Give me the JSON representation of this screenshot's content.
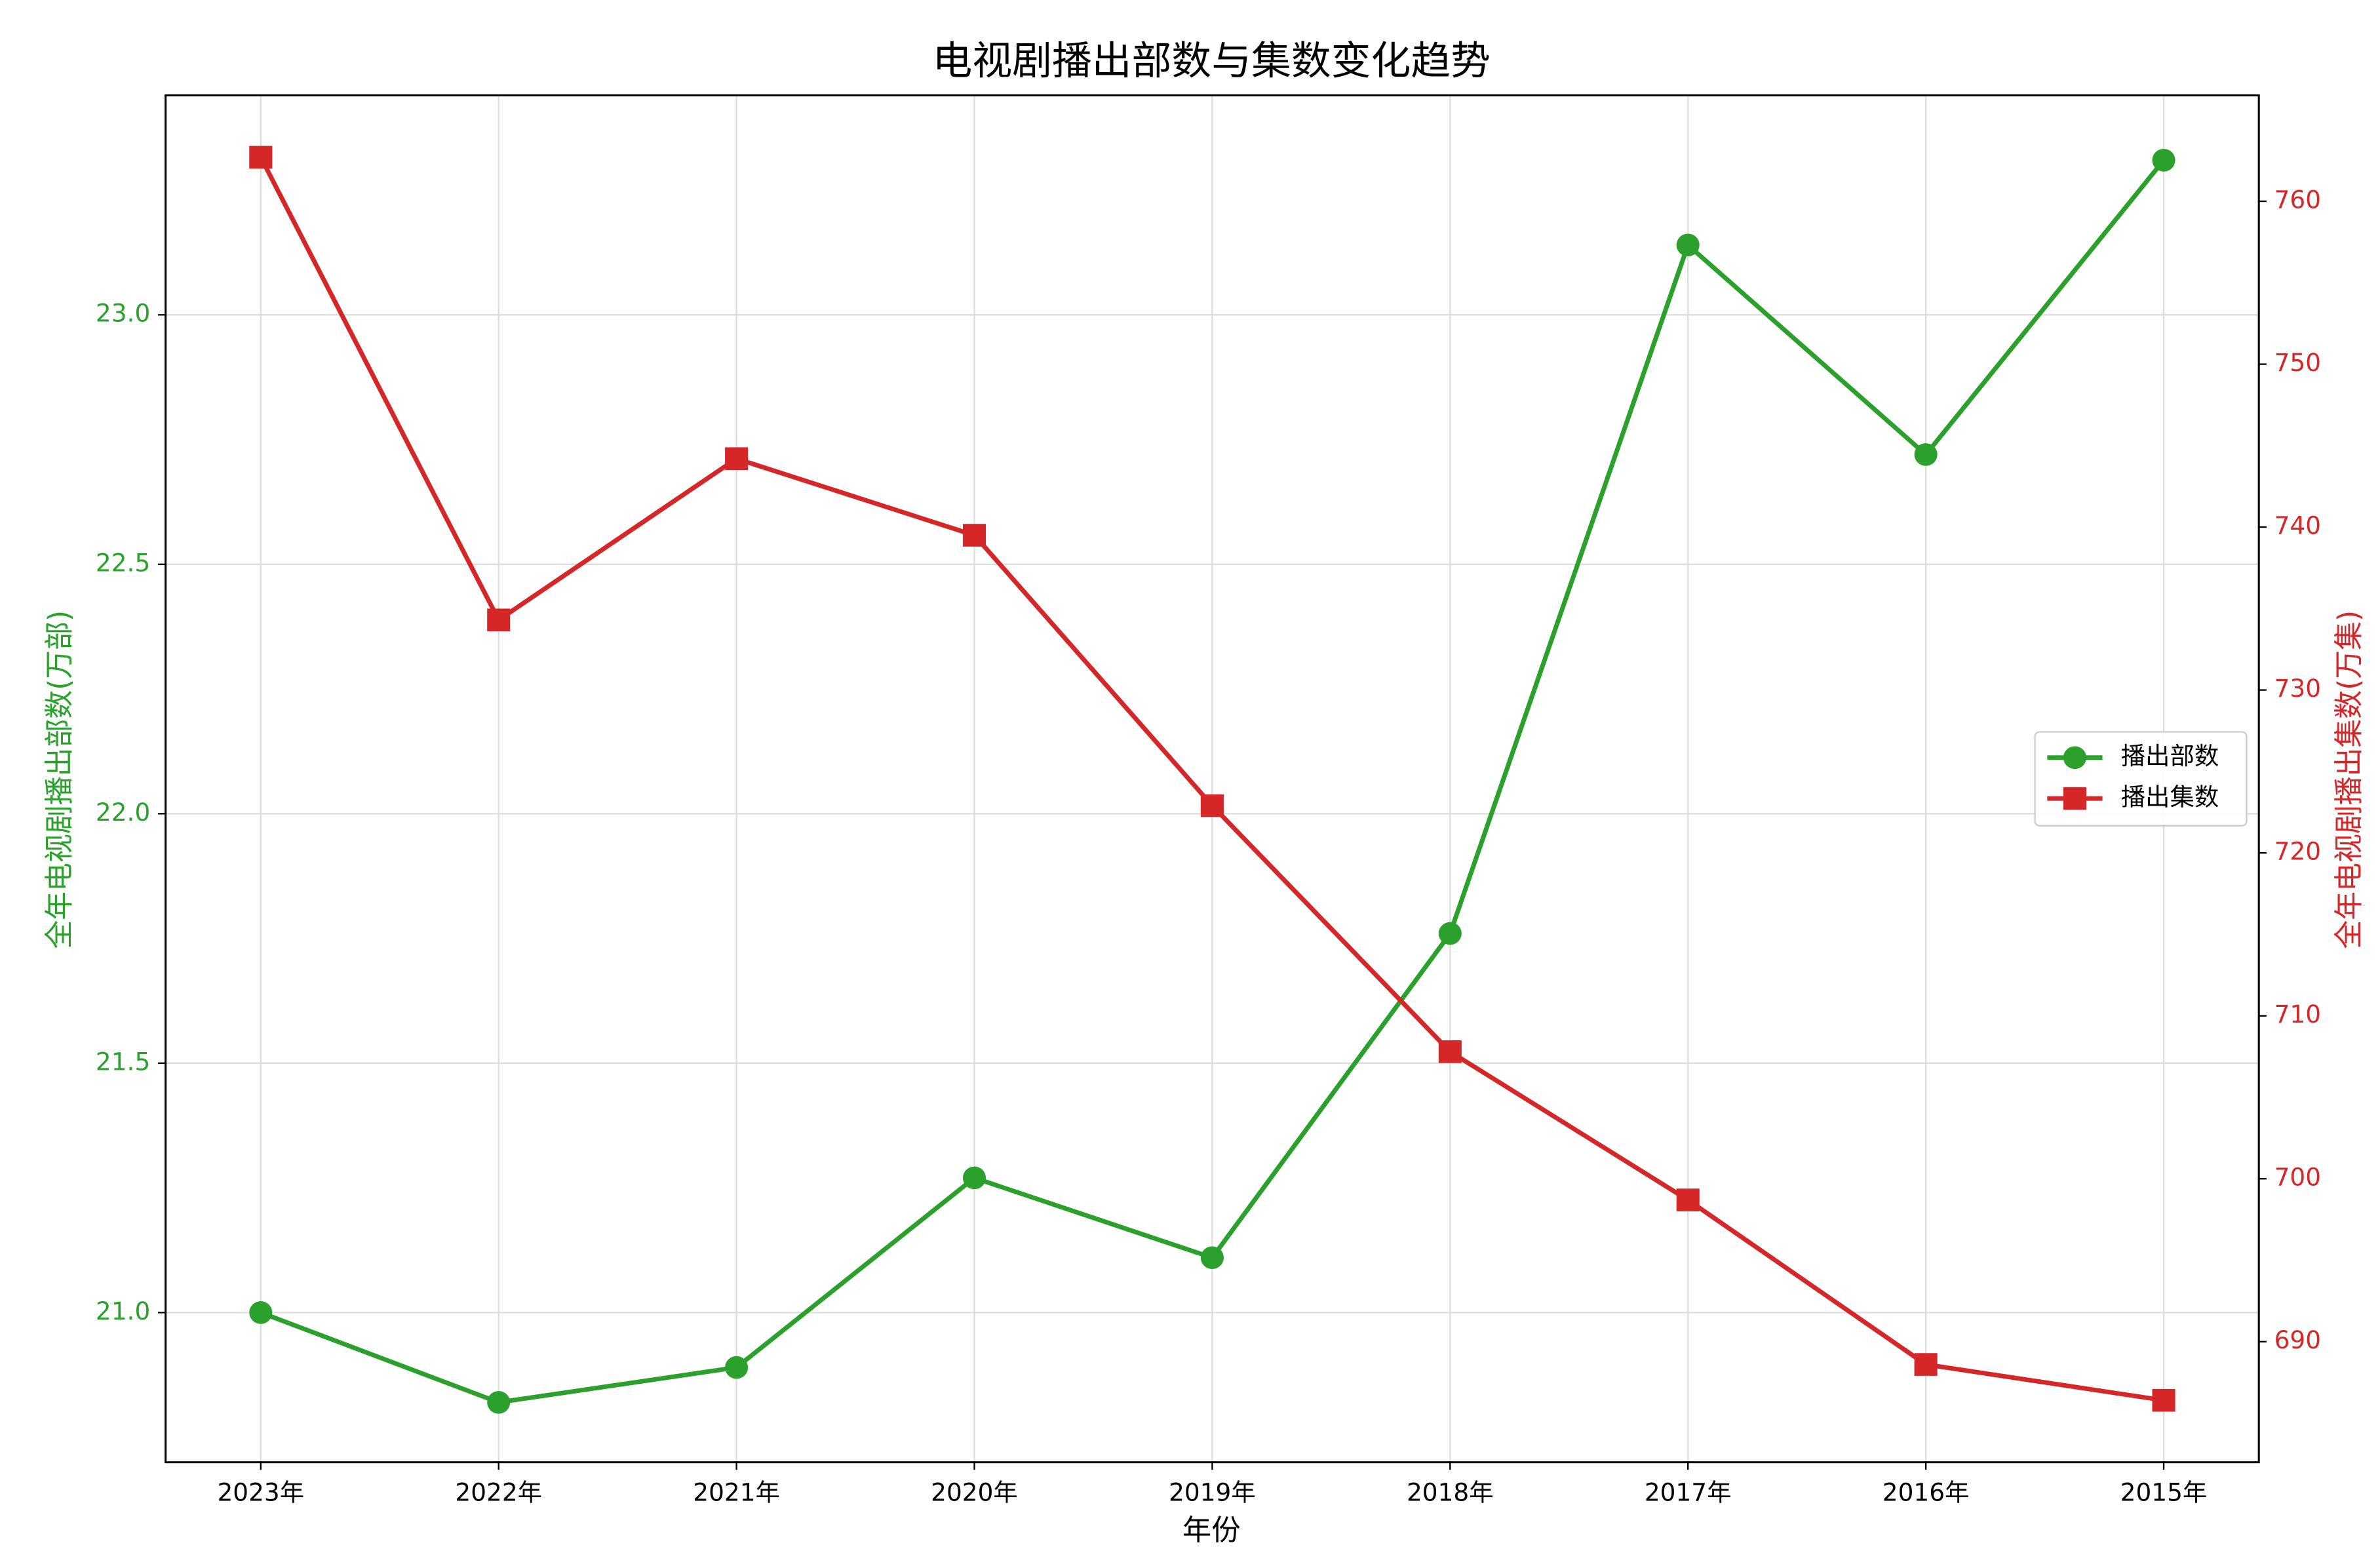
{
  "chart_data": {
    "type": "line",
    "title": "电视剧播出部数与集数变化趋势",
    "xlabel": "年份",
    "ylabel": "全年电视剧播出部数(万部)",
    "y2label": "全年电视剧播出集数(万集)",
    "categories": [
      "2023年",
      "2022年",
      "2021年",
      "2020年",
      "2019年",
      "2018年",
      "2017年",
      "2016年",
      "2015年"
    ],
    "series": [
      {
        "name": "播出部数",
        "color": "#2ca02c",
        "marker": "circle",
        "axis": "y",
        "values": [
          21.0,
          20.82,
          20.89,
          21.27,
          21.11,
          21.76,
          23.14,
          22.72,
          23.31
        ]
      },
      {
        "name": "播出集数",
        "color": "#d62728",
        "marker": "square",
        "axis": "y2",
        "values": [
          762.7,
          734.3,
          744.2,
          739.5,
          722.9,
          707.8,
          698.7,
          688.6,
          686.4
        ]
      }
    ],
    "ylim": [
      20.7,
      23.44
    ],
    "yticks": [
      {
        "value": 21.0,
        "label": "21.0"
      },
      21.5,
      {
        "value": 22.0,
        "label": "22.0"
      },
      22.5,
      {
        "value": 23.0,
        "label": "23.0"
      }
    ],
    "y2lim": [
      682.6,
      766.5
    ],
    "y2ticks": [
      690,
      700,
      710,
      720,
      730,
      740,
      750,
      760
    ],
    "grid": true,
    "legend": "center right"
  }
}
